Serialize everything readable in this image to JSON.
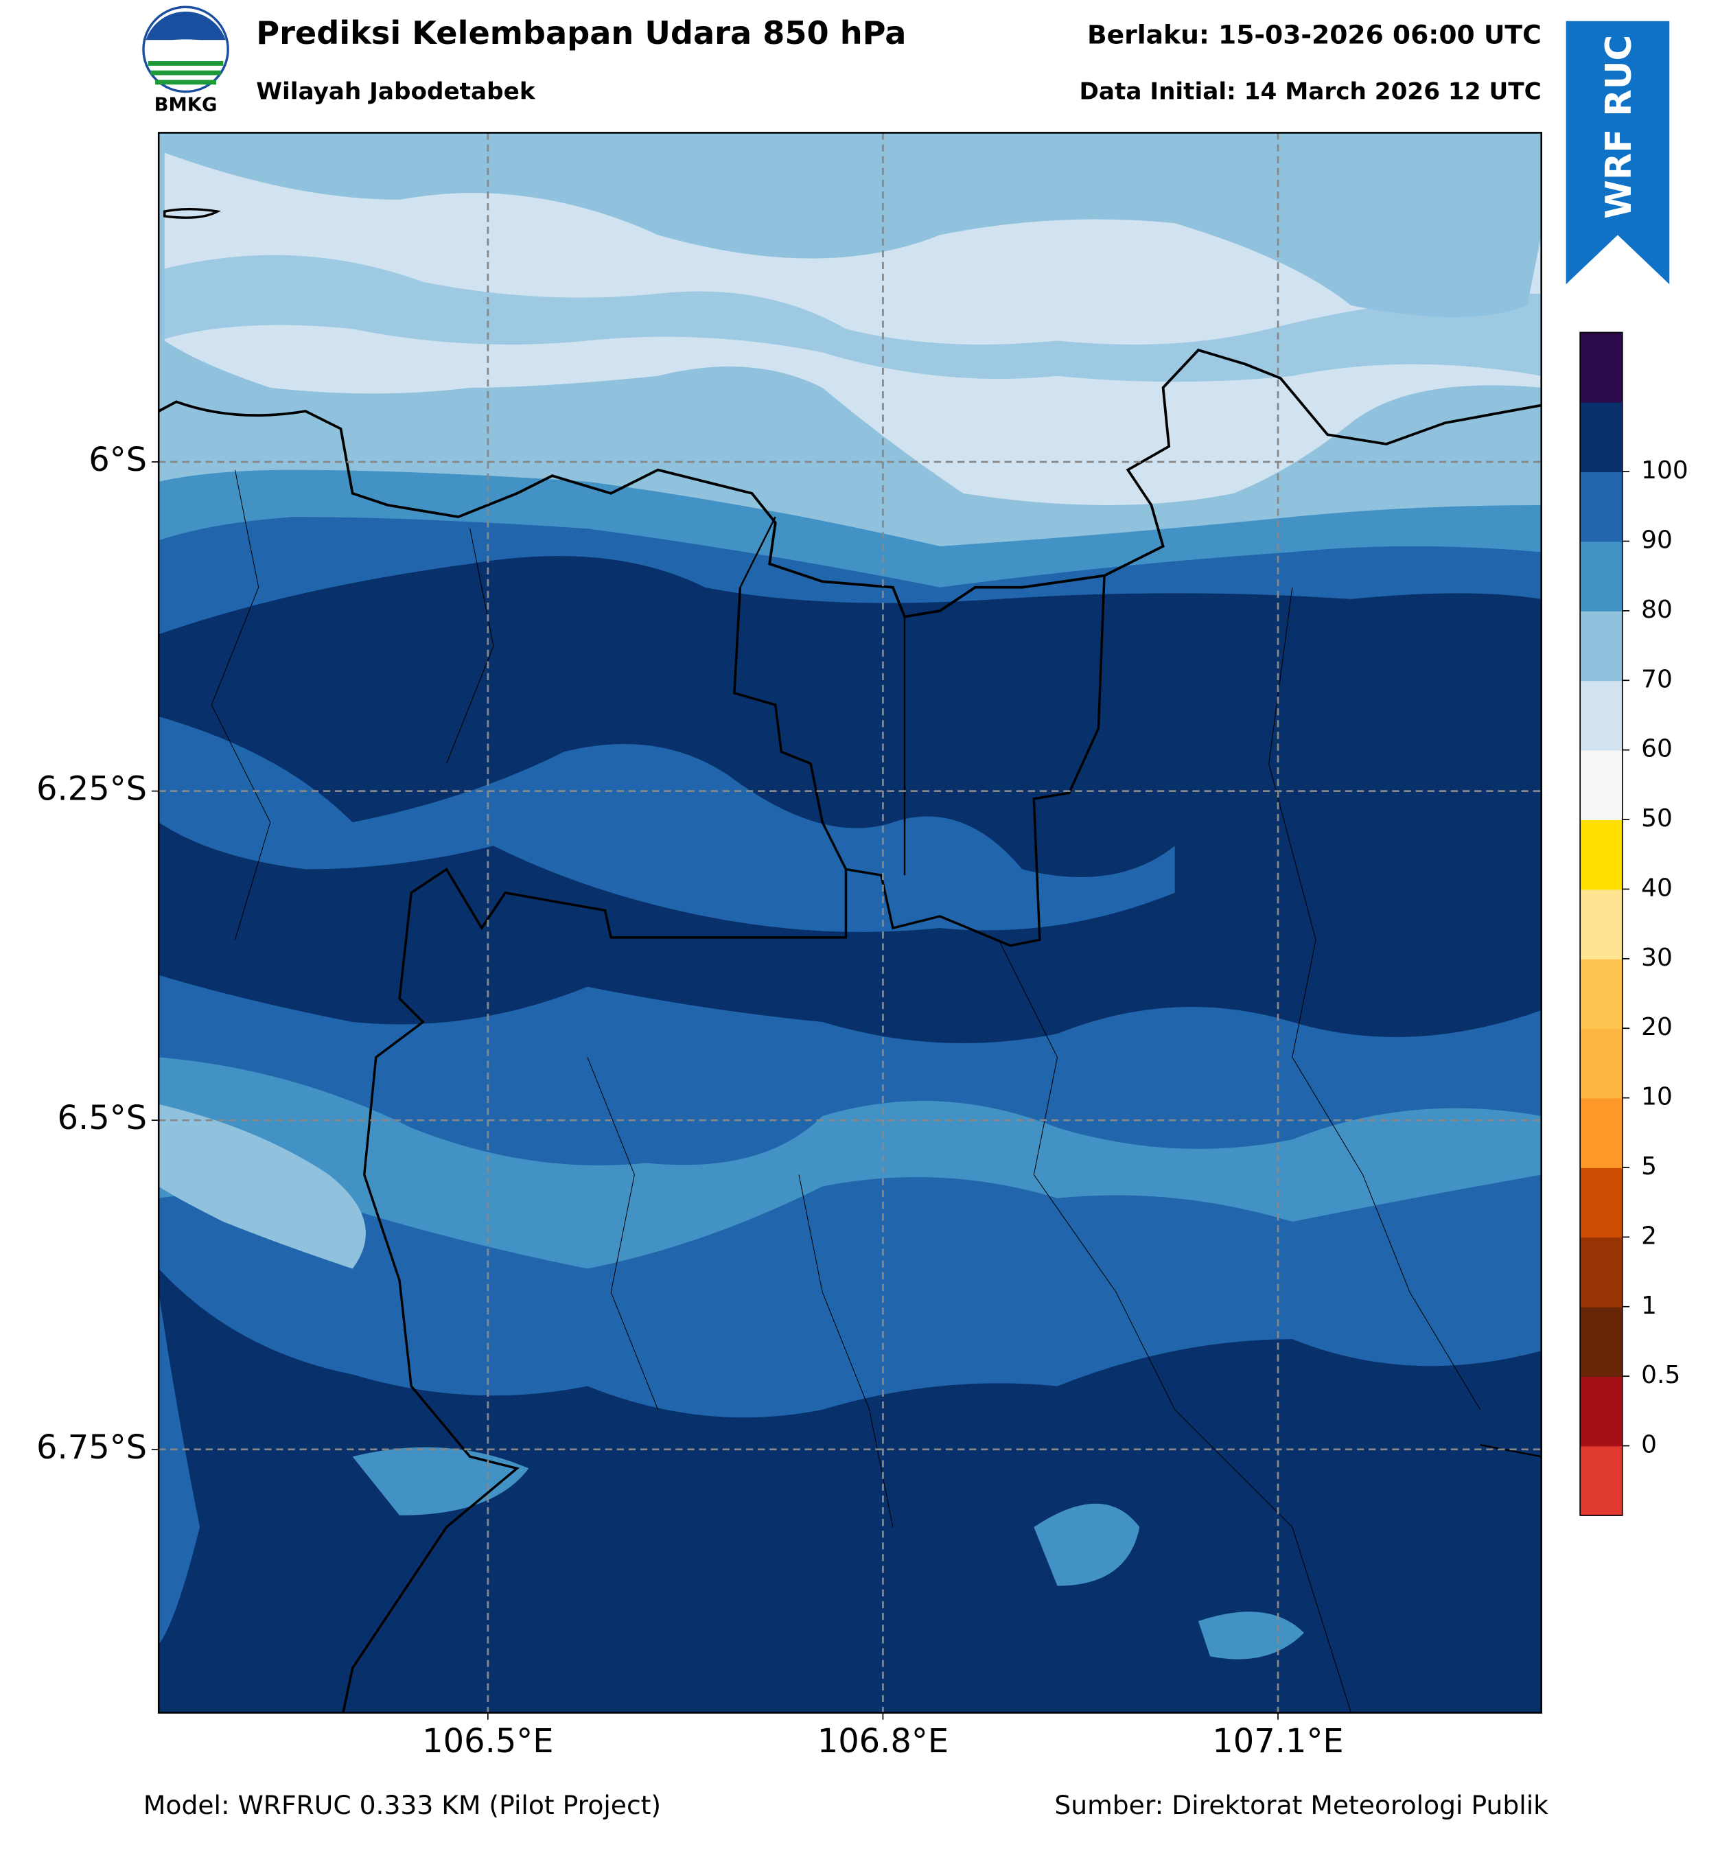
{
  "header": {
    "title": "Prediksi Kelembapan Udara 850 hPa",
    "subtitle": "Wilayah Jabodetabek",
    "valid": "Berlaku: 15-03-2026 06:00 UTC",
    "initial": "Data Initial: 14 March 2026 12 UTC",
    "logo_text": "BMKG",
    "badge": "WRF RUC"
  },
  "map": {
    "xlim": [
      106.25,
      107.3
    ],
    "ylim": [
      -6.95,
      -5.75
    ],
    "xticks": [
      {
        "value": 106.5,
        "label": "106.5°E"
      },
      {
        "value": 106.8,
        "label": "106.8°E"
      },
      {
        "value": 107.1,
        "label": "107.1°E"
      }
    ],
    "yticks": [
      {
        "value": -6,
        "label": "6°S"
      },
      {
        "value": -6.25,
        "label": "6.25°S"
      },
      {
        "value": -6.5,
        "label": "6.5°S"
      },
      {
        "value": -6.75,
        "label": "6.75°S"
      }
    ],
    "grid": true
  },
  "colorbar": {
    "levels": [
      0,
      0.5,
      1,
      2,
      5,
      10,
      20,
      30,
      40,
      50,
      60,
      70,
      80,
      90,
      100
    ],
    "colors": [
      "#e0392f",
      "#a50f15",
      "#662506",
      "#993404",
      "#cc4c02",
      "#fe9929",
      "#feb642",
      "#fec44f",
      "#fee391",
      "#fde000",
      "#f7f7f7",
      "#d1e3f0",
      "#90c2de",
      "#4292c6",
      "#2166ac",
      "#08306b",
      "#2d0a4a"
    ]
  },
  "footer": {
    "model": "Model: WRFRUC 0.333 KM (Pilot Project)",
    "source": "Sumber: Direktorat Meteorologi Publik"
  }
}
